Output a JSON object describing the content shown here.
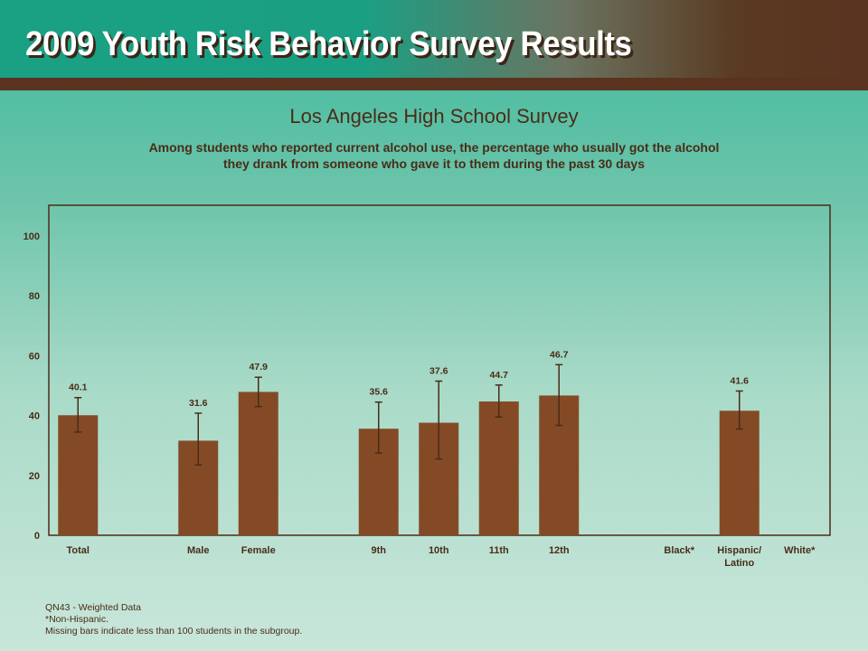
{
  "banner": {
    "title": "2009 Youth Risk Behavior Survey Results"
  },
  "colors": {
    "bar": "#844a26",
    "error_bar": "#4a2c18",
    "axis_text": "#4a2c18"
  },
  "chart_data": {
    "type": "bar",
    "title": "Los Angeles High School Survey",
    "subtitle": "Among students who reported current alcohol use, the percentage who usually got the alcohol they drank from someone who gave it to them during the past 30 days",
    "xlabel": "",
    "ylabel": "",
    "ylim": [
      0,
      110
    ],
    "yticks": [
      0,
      20,
      40,
      60,
      80,
      100
    ],
    "grid": false,
    "categories": [
      {
        "label": "Total",
        "value": 40.1,
        "ci": [
          34.5,
          46.0
        ]
      },
      {
        "label": "",
        "value": null,
        "ci": null
      },
      {
        "label": "Male",
        "value": 31.6,
        "ci": [
          23.5,
          40.8
        ]
      },
      {
        "label": "Female",
        "value": 47.9,
        "ci": [
          43.0,
          52.8
        ]
      },
      {
        "label": "",
        "value": null,
        "ci": null
      },
      {
        "label": "9th",
        "value": 35.6,
        "ci": [
          27.5,
          44.5
        ]
      },
      {
        "label": "10th",
        "value": 37.6,
        "ci": [
          25.5,
          51.5
        ]
      },
      {
        "label": "11th",
        "value": 44.7,
        "ci": [
          39.5,
          50.2
        ]
      },
      {
        "label": "12th",
        "value": 46.7,
        "ci": [
          36.7,
          57.0
        ]
      },
      {
        "label": "",
        "value": null,
        "ci": null
      },
      {
        "label": "Black*",
        "value": null,
        "ci": null
      },
      {
        "label": "Hispanic/\nLatino",
        "value": 41.6,
        "ci": [
          35.5,
          48.2
        ]
      },
      {
        "label": "White*",
        "value": null,
        "ci": null
      }
    ]
  },
  "footnotes": {
    "line1": "QN43 - Weighted Data",
    "line2": "*Non-Hispanic.",
    "line3": "Missing bars indicate less than 100 students in the subgroup."
  }
}
